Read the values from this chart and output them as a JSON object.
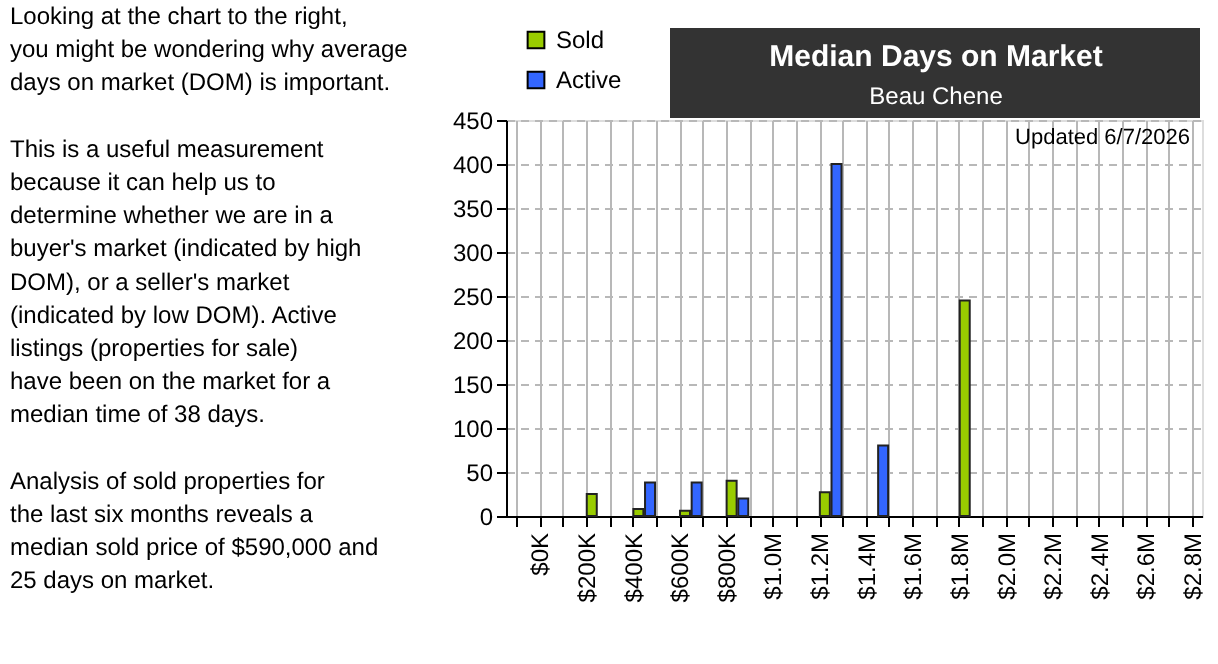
{
  "chart_data": {
    "type": "bar",
    "title": "Median Days on Market",
    "subtitle": "Beau Chene",
    "xlim": [
      -100000,
      2800000
    ],
    "xticks": [
      {
        "value": -100000,
        "label": null
      },
      {
        "value": 0,
        "label": "$0K"
      },
      {
        "value": 100000,
        "label": null
      },
      {
        "value": 200000,
        "label": "$200K"
      },
      {
        "value": 300000,
        "label": null
      },
      {
        "value": 400000,
        "label": "$400K"
      },
      {
        "value": 500000,
        "label": null
      },
      {
        "value": 600000,
        "label": "$600K"
      },
      {
        "value": 700000,
        "label": null
      },
      {
        "value": 800000,
        "label": "$800K"
      },
      {
        "value": 900000,
        "label": null
      },
      {
        "value": 1000000,
        "label": "$1.0M"
      },
      {
        "value": 1100000,
        "label": null
      },
      {
        "value": 1200000,
        "label": "$1.2M"
      },
      {
        "value": 1300000,
        "label": null
      },
      {
        "value": 1400000,
        "label": "$1.4M"
      },
      {
        "value": 1500000,
        "label": null
      },
      {
        "value": 1600000,
        "label": "$1.6M"
      },
      {
        "value": 1700000,
        "label": null
      },
      {
        "value": 1800000,
        "label": "$1.8M"
      },
      {
        "value": 1900000,
        "label": null
      },
      {
        "value": 2000000,
        "label": "$2.0M"
      },
      {
        "value": 2100000,
        "label": null
      },
      {
        "value": 2200000,
        "label": "$2.2M"
      },
      {
        "value": 2300000,
        "label": null
      },
      {
        "value": 2400000,
        "label": "$2.4M"
      },
      {
        "value": 2500000,
        "label": null
      },
      {
        "value": 2600000,
        "label": "$2.6M"
      },
      {
        "value": 2700000,
        "label": null
      },
      {
        "value": 2800000,
        "label": "$2.8M"
      }
    ],
    "ylim": [
      0,
      450
    ],
    "yticks": [
      0,
      50,
      100,
      150,
      200,
      250,
      300,
      350,
      400,
      450
    ],
    "series": [
      {
        "name": "Sold",
        "color": "#99cc00",
        "x": [
          225000,
          425000,
          625000,
          825000,
          1225000,
          1825000
        ],
        "values": [
          25,
          8,
          6,
          40,
          27,
          245
        ]
      },
      {
        "name": "Active",
        "color": "#3366ff",
        "x": [
          475000,
          675000,
          875000,
          1275000,
          1475000
        ],
        "values": [
          38,
          38,
          20,
          400,
          80
        ]
      }
    ],
    "grid": true,
    "legend": "top left",
    "annotations": [
      "Looking at the chart to the right, you might be wondering why average days on market (DOM) is important.",
      "This is a useful measurement because it can help us to determine whether we are in a buyer's market (indicated by high DOM), or a seller's market (indicated by low DOM).  Active listings (properties for sale) have been on the market for a median time of 38 days.",
      "Analysis of sold properties for the last six months reveals a median sold price of $590,000 and 25 days on market.",
      "Updated 6/7/2026"
    ]
  }
}
